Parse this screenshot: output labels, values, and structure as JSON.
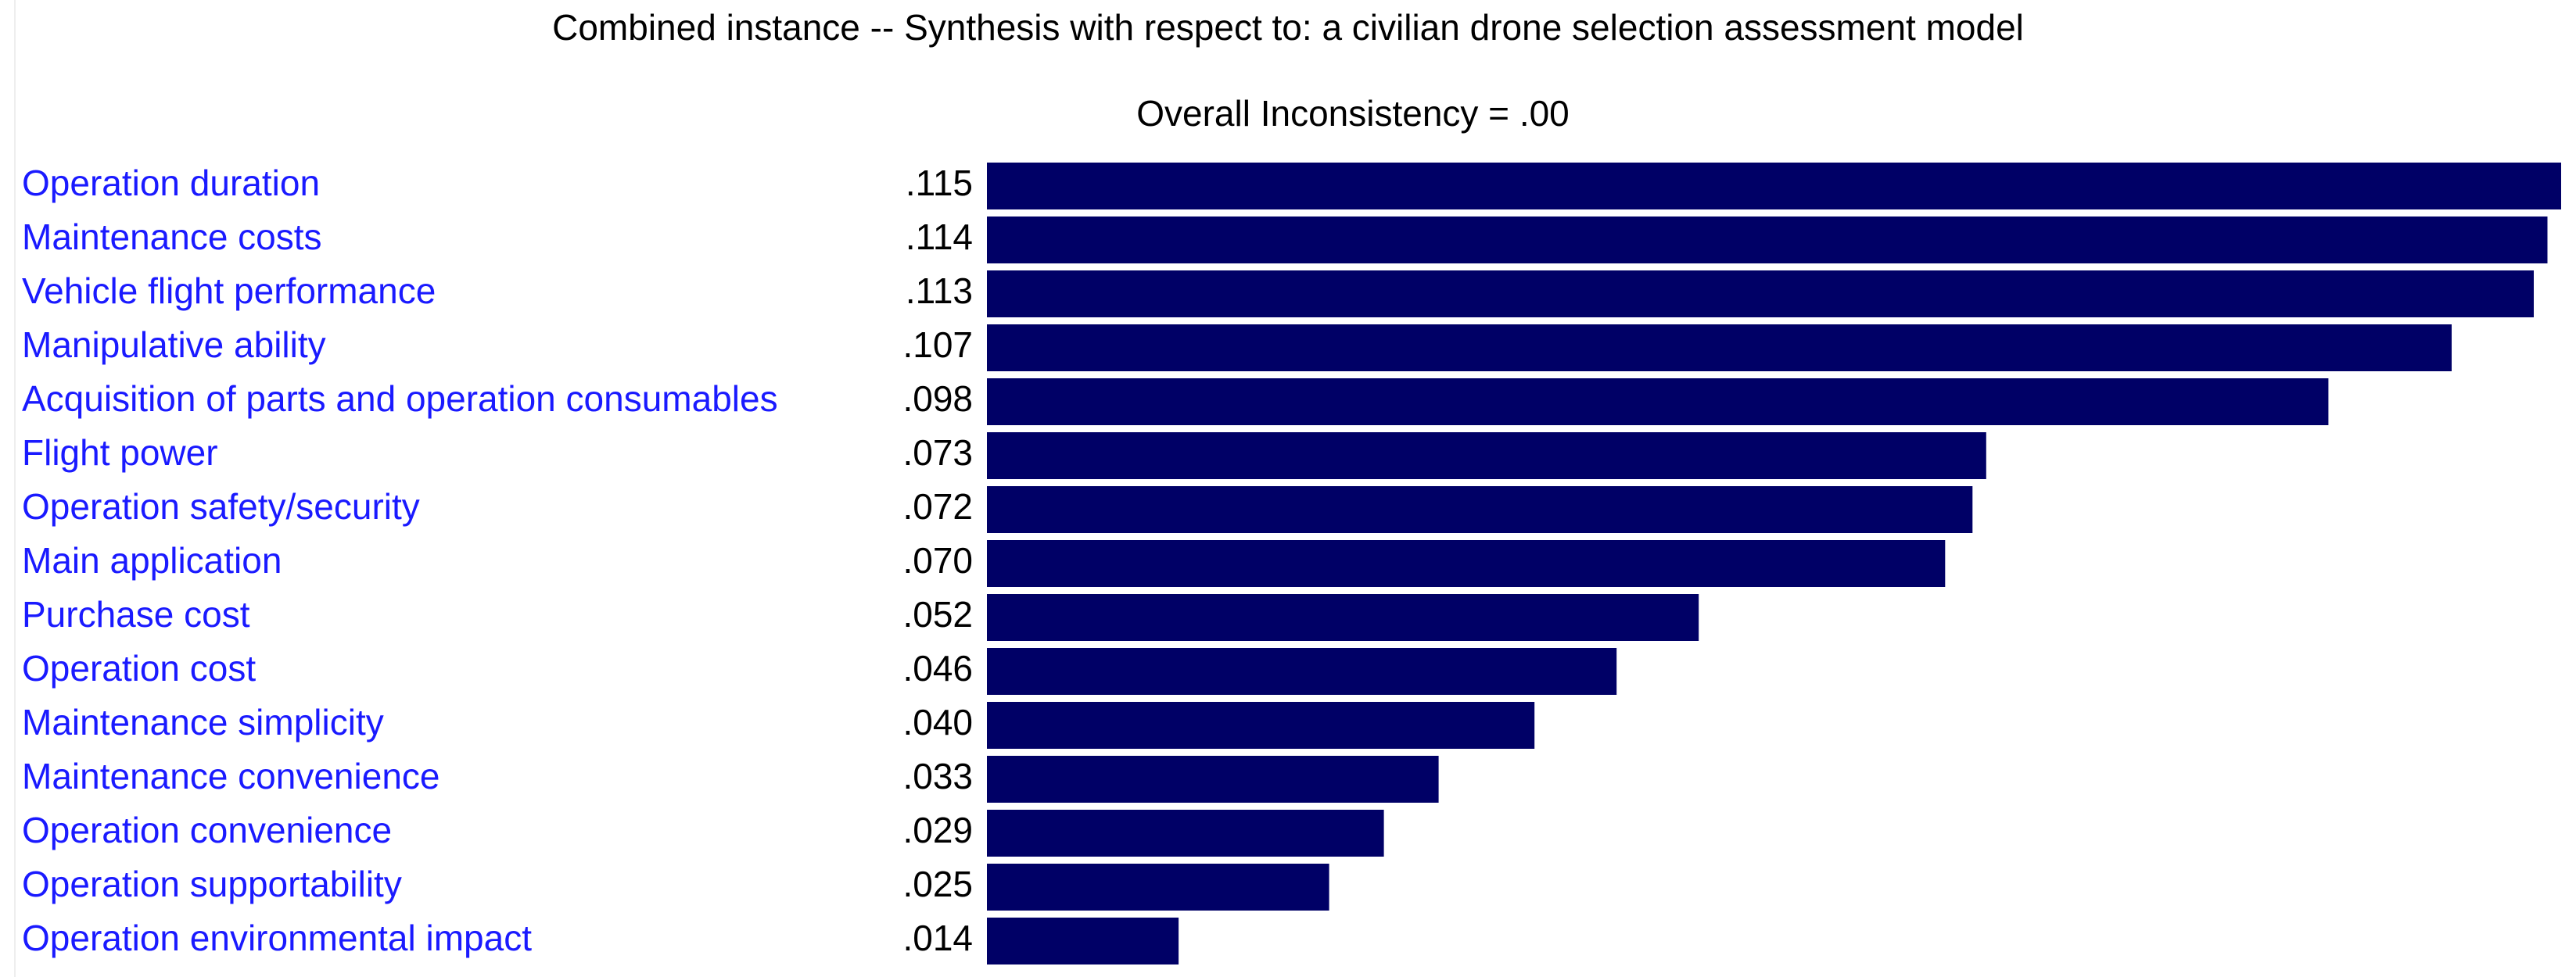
{
  "chart_data": {
    "type": "bar",
    "orientation": "horizontal",
    "title": "Combined instance -- Synthesis with respect to: a civilian drone selection assessment model",
    "subtitle": "Overall Inconsistency = .00",
    "categories": [
      "Operation duration",
      "Maintenance costs",
      "Vehicle flight performance",
      "Manipulative ability",
      "Acquisition of parts and operation consumables",
      "Flight power",
      "Operation safety/security",
      "Main application",
      "Purchase cost",
      "Operation cost",
      "Maintenance simplicity",
      "Maintenance convenience",
      "Operation convenience",
      "Operation supportability",
      "Operation environmental impact"
    ],
    "values": [
      0.115,
      0.114,
      0.113,
      0.107,
      0.098,
      0.073,
      0.072,
      0.07,
      0.052,
      0.046,
      0.04,
      0.033,
      0.029,
      0.025,
      0.014
    ],
    "value_labels": [
      ".115",
      ".114",
      ".113",
      ".107",
      ".098",
      ".073",
      ".072",
      ".070",
      ".052",
      ".046",
      ".040",
      ".033",
      ".029",
      ".025",
      ".014"
    ],
    "xlim": [
      0,
      0.115
    ],
    "xlabel": "",
    "ylabel": "",
    "grid": false,
    "legend": "none",
    "colors": {
      "bar": "#000066",
      "category_label": "#1a1aff",
      "value_label": "#000000"
    }
  }
}
